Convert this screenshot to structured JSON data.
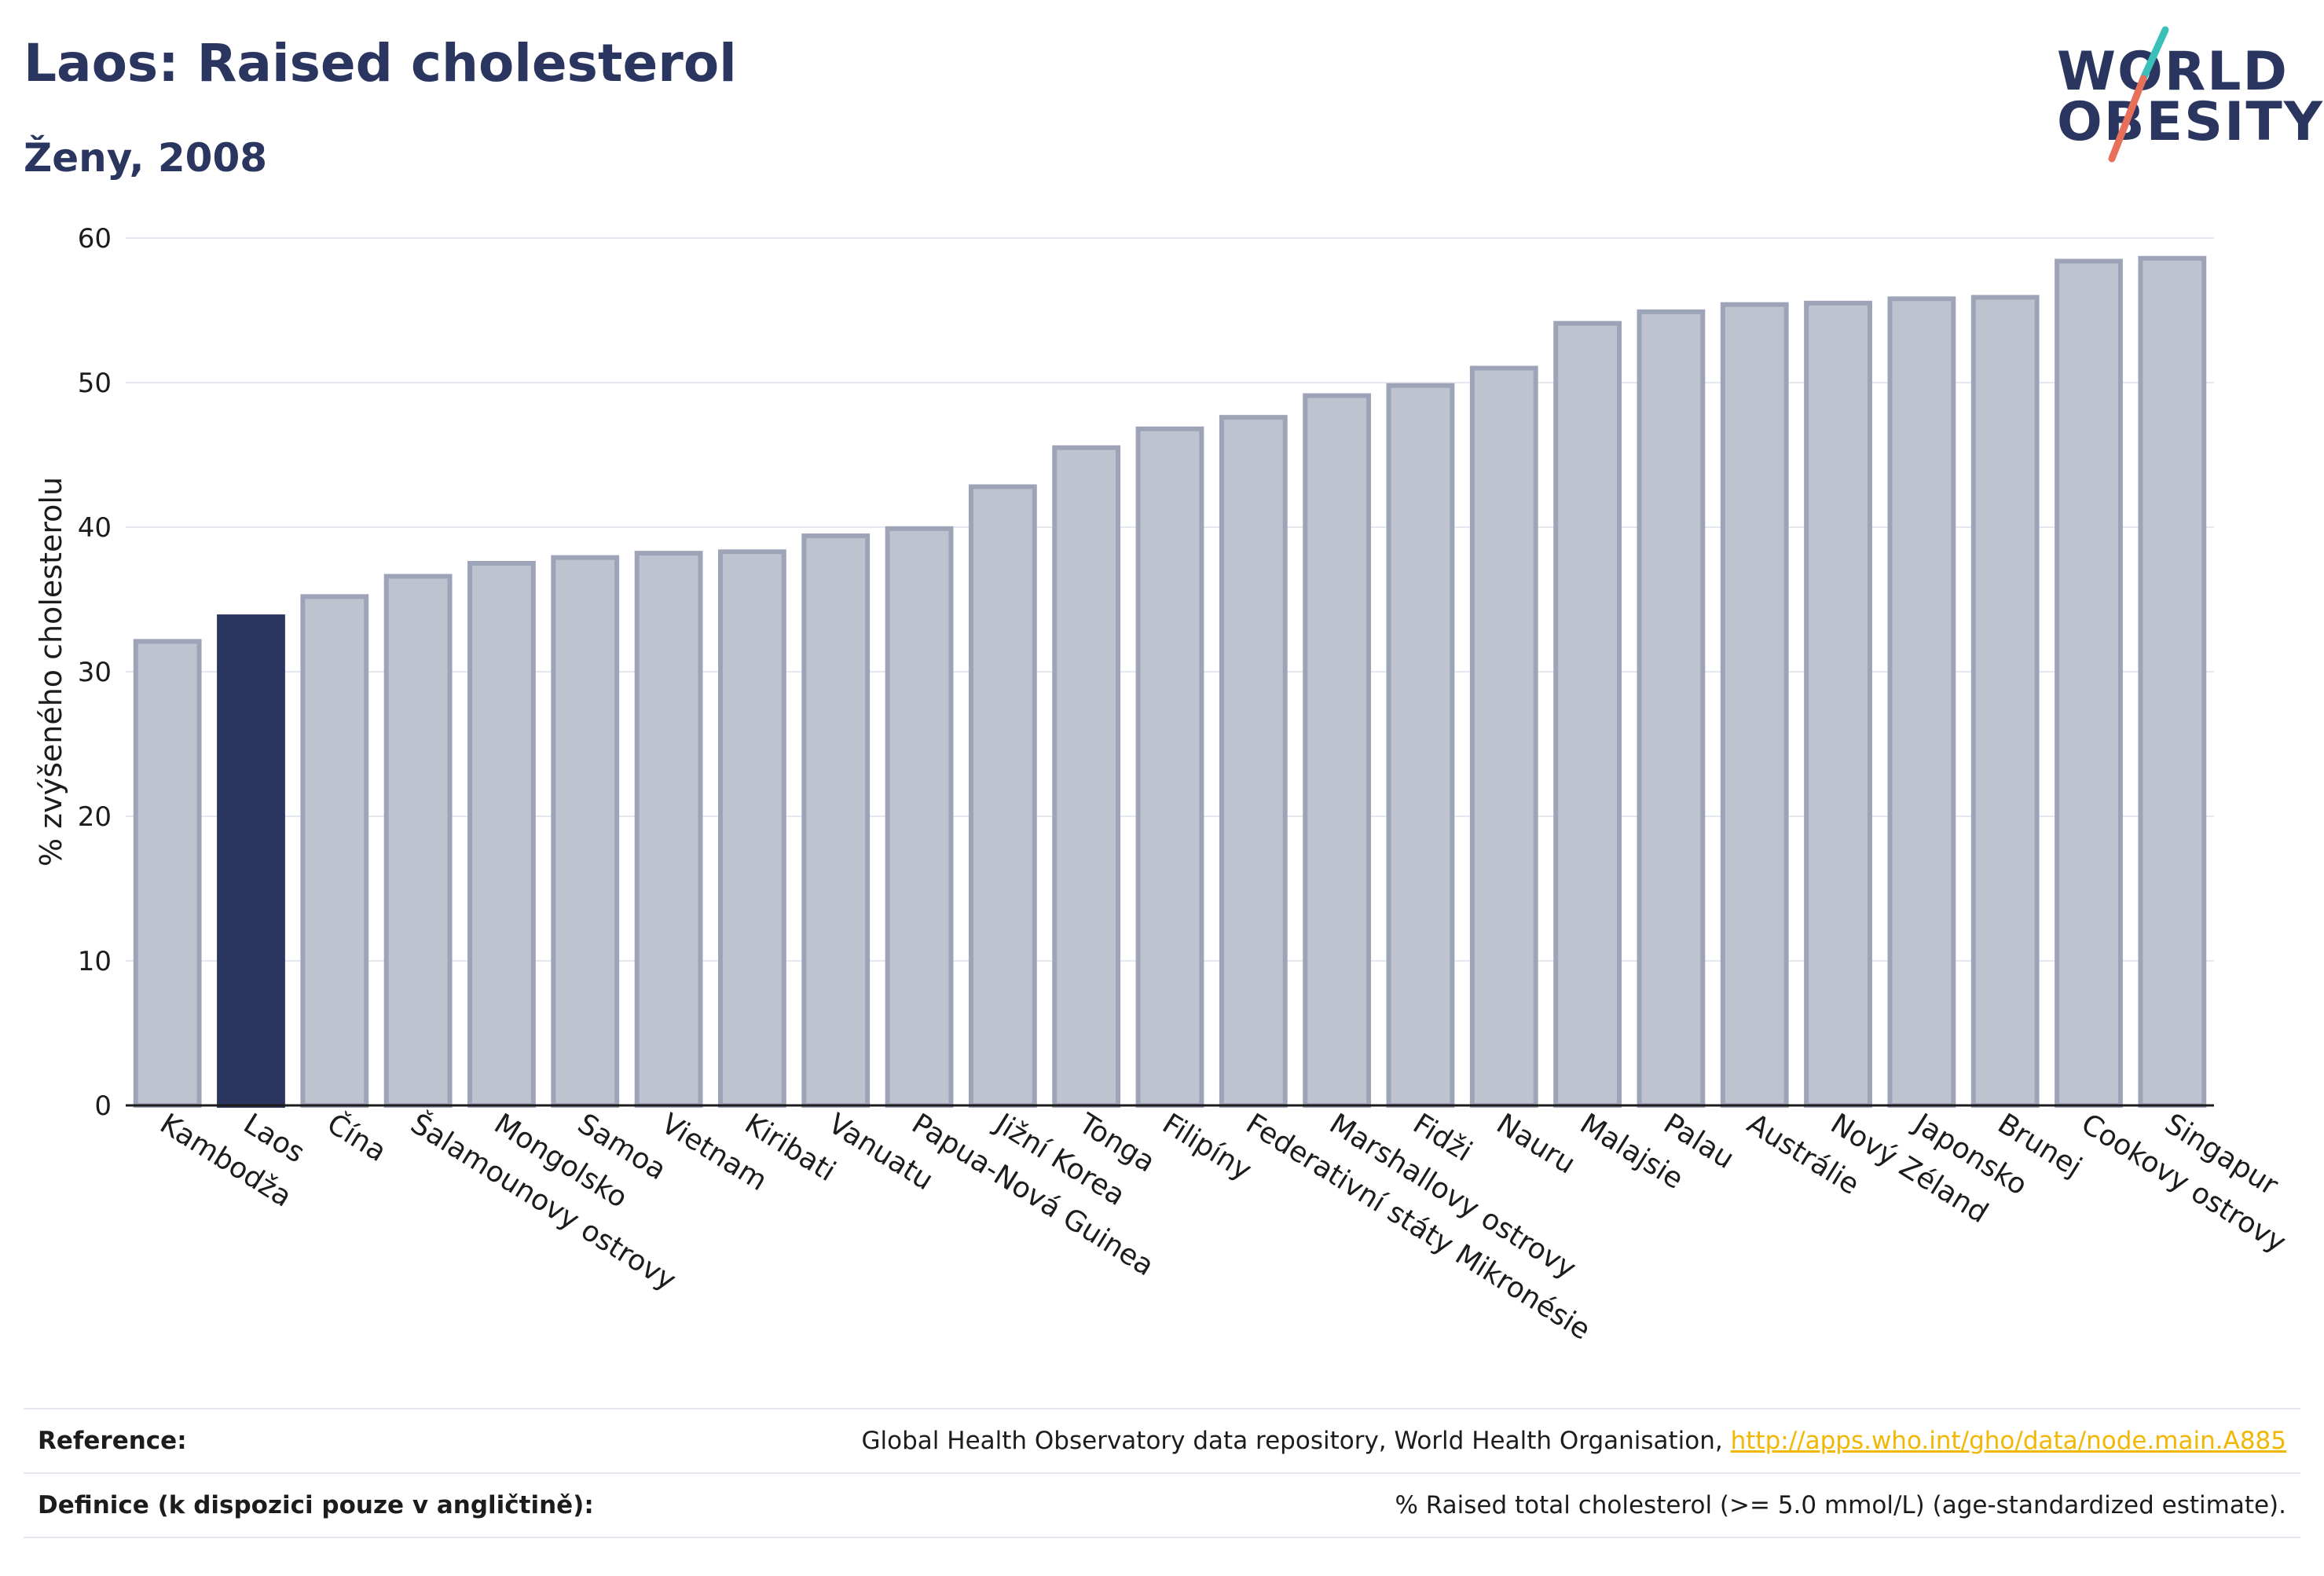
{
  "header": {
    "title": "Laos: Raised cholesterol",
    "subtitle": "Ženy, 2008"
  },
  "logo": {
    "line1": "WORLD",
    "line2": "OBESITY"
  },
  "footer": {
    "reference_label": "Reference:",
    "reference_text": "Global Health Observatory data repository, World Health Organisation, ",
    "reference_link": "http://apps.who.int/gho/data/node.main.A885",
    "definition_label": "Definice (k dispozici pouze v angličtině):",
    "definition_text": "% Raised total cholesterol (>= 5.0 mmol/L) (age-standardized estimate)."
  },
  "colors": {
    "highlight": "#2a3560",
    "bar": "#bfc3d0",
    "bar_border": "#9ea4b8",
    "grid": "#e6e8ef",
    "logo_teal": "#3bbfb9",
    "logo_coral": "#e8705a",
    "link": "#f2b705"
  },
  "chart_data": {
    "type": "bar",
    "title": "Laos: Raised cholesterol",
    "subtitle": "Ženy, 2008",
    "xlabel": "",
    "ylabel": "% zvýšeného cholesterolu",
    "ylim": [
      0,
      60
    ],
    "yticks": [
      0,
      10,
      20,
      30,
      40,
      50,
      60
    ],
    "grid": true,
    "highlight": "Laos",
    "categories": [
      "Kambodža",
      "Laos",
      "Čína",
      "Šalamounovy ostrovy",
      "Mongolsko",
      "Samoa",
      "Vietnam",
      "Kiribati",
      "Vanuatu",
      "Papua-Nová Guinea",
      "Jižní Korea",
      "Tonga",
      "Filipíny",
      "Federativní státy Mikronésie",
      "Marshallovy ostrovy",
      "Fidži",
      "Nauru",
      "Malajsie",
      "Palau",
      "Austrálie",
      "Nový Zéland",
      "Japonsko",
      "Brunej",
      "Cookovy ostrovy",
      "Singapur"
    ],
    "values": [
      32.1,
      33.8,
      35.2,
      36.6,
      37.5,
      37.9,
      38.2,
      38.3,
      39.4,
      39.9,
      42.8,
      45.5,
      46.8,
      47.6,
      49.1,
      49.8,
      51.0,
      54.1,
      54.9,
      55.4,
      55.5,
      55.8,
      55.9,
      58.4,
      58.6
    ]
  }
}
